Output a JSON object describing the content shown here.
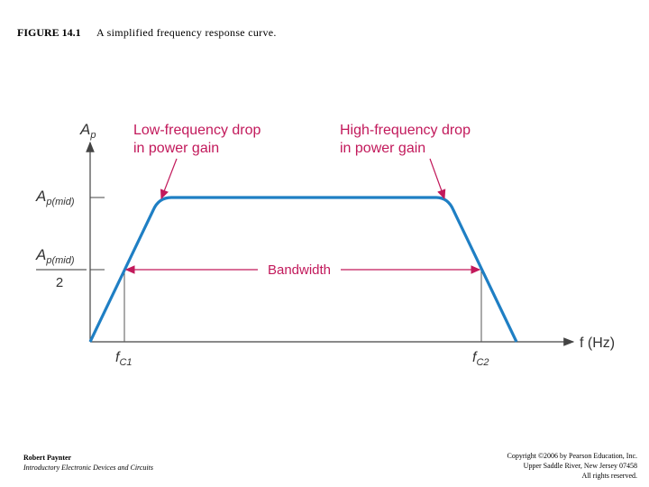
{
  "figure": {
    "number": "FIGURE 14.1",
    "caption": "A simplified frequency response curve."
  },
  "diagram": {
    "y_axis_label_main": "A",
    "y_axis_label_sub": "p",
    "y_mid_main": "A",
    "y_mid_sub": "p(mid)",
    "y_half_num_main": "A",
    "y_half_num_sub": "p(mid)",
    "y_half_den": "2",
    "x_axis_label": "f (Hz)",
    "fc1_main": "f",
    "fc1_sub": "C1",
    "fc2_main": "f",
    "fc2_sub": "C2",
    "low_drop_line1": "Low-frequency drop",
    "low_drop_line2": "in power gain",
    "high_drop_line1": "High-frequency drop",
    "high_drop_line2": "in power gain",
    "bandwidth_label": "Bandwidth",
    "colors": {
      "curve": "#1f7fc4",
      "annotation": "#c2195b",
      "axis": "#444444"
    }
  },
  "footer": {
    "author": "Robert Paynter",
    "book": "Introductory Electronic Devices and Circuits",
    "copyright_lines": [
      "Copyright ©2006 by Pearson Education, Inc.",
      "Upper Saddle River, New Jersey 07458",
      "All rights reserved."
    ]
  }
}
